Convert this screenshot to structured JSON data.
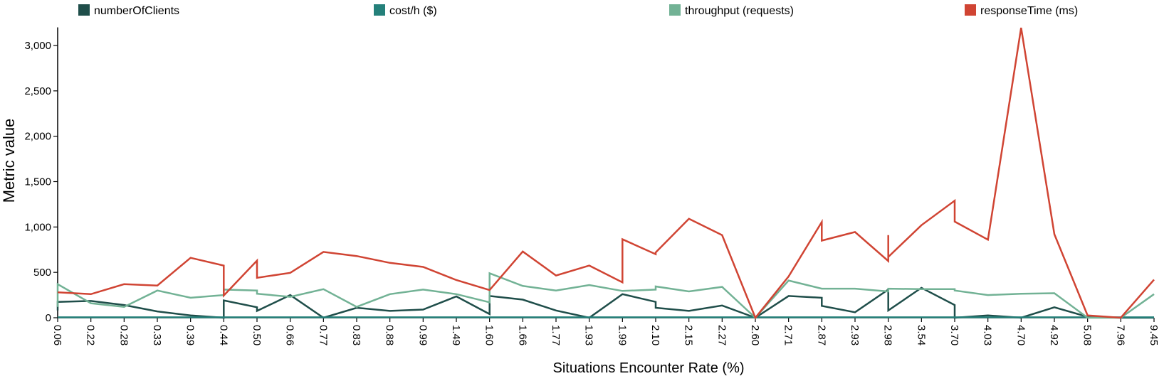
{
  "chart_data": {
    "type": "line",
    "xlabel": "Situations Encounter Rate (%)",
    "ylabel": "Metric value",
    "ylim": [
      0,
      3200
    ],
    "yticks": [
      0,
      500,
      1000,
      1500,
      2000,
      2500,
      3000
    ],
    "ytick_labels": [
      "0",
      "500",
      "1,000",
      "1,500",
      "2,000",
      "2,500",
      "3,000"
    ],
    "categories": [
      "0.06",
      "0.22",
      "0.28",
      "0.33",
      "0.39",
      "0.44",
      "0.50",
      "0.66",
      "0.77",
      "0.83",
      "0.88",
      "0.99",
      "1.49",
      "1.60",
      "1.66",
      "1.77",
      "1.93",
      "1.99",
      "2.10",
      "2.15",
      "2.27",
      "2.60",
      "2.71",
      "2.87",
      "2.93",
      "2.98",
      "3.54",
      "3.70",
      "4.03",
      "4.70",
      "4.92",
      "5.08",
      "7.96",
      "9.45"
    ],
    "legend_position": "top",
    "grid": false,
    "series": [
      {
        "name": "numberOfClients",
        "color": "#1f4e4a",
        "points": [
          [
            0,
            80
          ],
          [
            0,
            175
          ],
          [
            1,
            185
          ],
          [
            2,
            140
          ],
          [
            3,
            70
          ],
          [
            4,
            25
          ],
          [
            5,
            0
          ],
          [
            5,
            190
          ],
          [
            6,
            115
          ],
          [
            6,
            75
          ],
          [
            7,
            250
          ],
          [
            8,
            0
          ],
          [
            9,
            110
          ],
          [
            10,
            75
          ],
          [
            11,
            90
          ],
          [
            12,
            235
          ],
          [
            13,
            40
          ],
          [
            13,
            240
          ],
          [
            14,
            200
          ],
          [
            15,
            80
          ],
          [
            16,
            0
          ],
          [
            17,
            260
          ],
          [
            18,
            175
          ],
          [
            18,
            110
          ],
          [
            19,
            75
          ],
          [
            20,
            135
          ],
          [
            21,
            0
          ],
          [
            22,
            240
          ],
          [
            23,
            220
          ],
          [
            23,
            130
          ],
          [
            24,
            60
          ],
          [
            25,
            310
          ],
          [
            25,
            80
          ],
          [
            26,
            330
          ],
          [
            27,
            140
          ],
          [
            27,
            0
          ],
          [
            28,
            25
          ],
          [
            29,
            0
          ],
          [
            30,
            115
          ],
          [
            31,
            10
          ],
          [
            32,
            0
          ],
          [
            33,
            0
          ]
        ]
      },
      {
        "name": "cost/h ($)",
        "color": "#24807a",
        "points": [
          [
            0,
            5
          ],
          [
            33,
            5
          ]
        ]
      },
      {
        "name": "throughput (requests)",
        "color": "#72b295",
        "points": [
          [
            0,
            120
          ],
          [
            0,
            370
          ],
          [
            1,
            160
          ],
          [
            2,
            120
          ],
          [
            3,
            300
          ],
          [
            4,
            220
          ],
          [
            5,
            250
          ],
          [
            5,
            310
          ],
          [
            6,
            300
          ],
          [
            6,
            265
          ],
          [
            7,
            230
          ],
          [
            8,
            315
          ],
          [
            9,
            120
          ],
          [
            10,
            260
          ],
          [
            11,
            310
          ],
          [
            12,
            260
          ],
          [
            13,
            170
          ],
          [
            13,
            490
          ],
          [
            14,
            350
          ],
          [
            15,
            300
          ],
          [
            16,
            360
          ],
          [
            17,
            295
          ],
          [
            18,
            310
          ],
          [
            18,
            345
          ],
          [
            19,
            290
          ],
          [
            20,
            340
          ],
          [
            21,
            0
          ],
          [
            22,
            410
          ],
          [
            23,
            320
          ],
          [
            24,
            320
          ],
          [
            25,
            290
          ],
          [
            25,
            320
          ],
          [
            26,
            315
          ],
          [
            27,
            315
          ],
          [
            27,
            300
          ],
          [
            28,
            250
          ],
          [
            29,
            265
          ],
          [
            30,
            270
          ],
          [
            31,
            0
          ],
          [
            32,
            0
          ],
          [
            33,
            260
          ]
        ]
      },
      {
        "name": "responseTime (ms)",
        "color": "#d04433",
        "points": [
          [
            0,
            280
          ],
          [
            1,
            260
          ],
          [
            2,
            370
          ],
          [
            3,
            355
          ],
          [
            4,
            660
          ],
          [
            5,
            575
          ],
          [
            5,
            245
          ],
          [
            6,
            630
          ],
          [
            6,
            440
          ],
          [
            7,
            495
          ],
          [
            8,
            725
          ],
          [
            9,
            680
          ],
          [
            10,
            605
          ],
          [
            11,
            560
          ],
          [
            12,
            415
          ],
          [
            13,
            305
          ],
          [
            14,
            730
          ],
          [
            15,
            465
          ],
          [
            16,
            575
          ],
          [
            17,
            390
          ],
          [
            17,
            865
          ],
          [
            18,
            700
          ],
          [
            18,
            720
          ],
          [
            19,
            1090
          ],
          [
            20,
            910
          ],
          [
            21,
            0
          ],
          [
            22,
            455
          ],
          [
            23,
            1055
          ],
          [
            23,
            850
          ],
          [
            24,
            945
          ],
          [
            25,
            625
          ],
          [
            25,
            910
          ],
          [
            25,
            670
          ],
          [
            26,
            1020
          ],
          [
            27,
            1290
          ],
          [
            27,
            1060
          ],
          [
            28,
            860
          ],
          [
            29,
            3195
          ],
          [
            30,
            920
          ],
          [
            31,
            25
          ],
          [
            32,
            0
          ],
          [
            33,
            420
          ]
        ]
      }
    ]
  }
}
